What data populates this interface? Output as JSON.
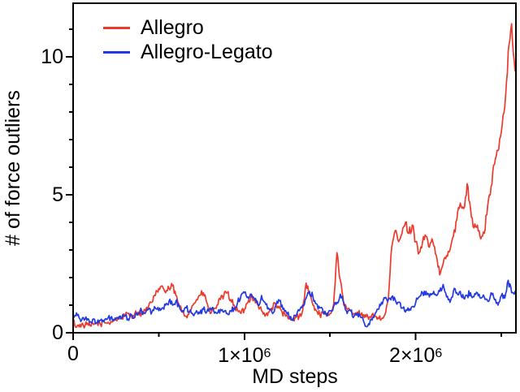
{
  "figure": {
    "background": "#ffffff",
    "frame_color": "#000000",
    "text_color": "#000000"
  },
  "chart_data": {
    "type": "line",
    "title": "",
    "xlabel": "MD steps",
    "ylabel": "# of force outliers",
    "xlim": [
      0,
      2585000
    ],
    "ylim": [
      0,
      11.94
    ],
    "grid": false,
    "legend_position": "top-left-inside",
    "x_major_ticks": [
      0,
      1000000,
      2000000
    ],
    "x_minor_ticks": [
      500000,
      1500000,
      2500000
    ],
    "x_tick_labels": [
      {
        "value": 0,
        "base": "0",
        "exp": ""
      },
      {
        "value": 1000000,
        "base": "1×10",
        "exp": "6"
      },
      {
        "value": 2000000,
        "base": "2×10",
        "exp": "6"
      }
    ],
    "y_major_ticks": [
      0,
      5,
      10
    ],
    "y_minor_ticks": [
      1,
      2,
      3,
      4,
      6,
      7,
      8,
      9,
      11
    ],
    "y_tick_labels": [
      {
        "value": 0,
        "text": "0"
      },
      {
        "value": 5,
        "text": "5"
      },
      {
        "value": 10,
        "text": "10"
      }
    ],
    "appearance": {
      "line_width": 1.7,
      "frame_width": 2,
      "noise_amplitude": 0.1,
      "subdivisions": 4
    },
    "series": [
      {
        "name": "Allegro",
        "color": "#ec3b2d",
        "x_start": 0,
        "x_step": 20000,
        "values": [
          0.45,
          0.2,
          0.3,
          0.25,
          0.3,
          0.25,
          0.3,
          0.35,
          0.3,
          0.4,
          0.35,
          0.4,
          0.45,
          0.5,
          0.55,
          0.6,
          0.7,
          0.6,
          0.7,
          0.75,
          0.7,
          0.8,
          0.95,
          1.1,
          1.35,
          1.6,
          1.7,
          1.45,
          1.6,
          1.7,
          1.35,
          0.95,
          0.75,
          0.6,
          0.8,
          1.0,
          1.2,
          1.35,
          1.45,
          1.1,
          0.7,
          0.85,
          1.0,
          1.2,
          1.35,
          1.45,
          1.2,
          1.0,
          0.8,
          0.7,
          0.85,
          1.1,
          1.35,
          1.2,
          1.0,
          0.8,
          0.6,
          0.75,
          0.9,
          1.05,
          0.9,
          0.75,
          0.6,
          0.5,
          0.45,
          0.55,
          0.6,
          0.8,
          1.8,
          1.4,
          1.0,
          0.8,
          0.65,
          0.7,
          0.6,
          0.7,
          1.0,
          2.9,
          1.9,
          1.0,
          0.85,
          0.8,
          0.7,
          0.75,
          0.65,
          0.55,
          0.6,
          0.55,
          0.65,
          0.55,
          0.5,
          0.65,
          1.2,
          3.1,
          3.7,
          3.3,
          3.6,
          4.0,
          3.6,
          3.9,
          3.3,
          2.9,
          3.3,
          3.5,
          3.1,
          3.3,
          2.8,
          2.1,
          2.5,
          2.8,
          3.0,
          3.5,
          4.1,
          4.7,
          4.5,
          5.4,
          4.5,
          3.8,
          3.9,
          3.4,
          3.6,
          4.6,
          5.3,
          6.1,
          6.6,
          7.3,
          8.2,
          10.2,
          11.2,
          9.5
        ]
      },
      {
        "name": "Allegro-Legato",
        "color": "#233ae2",
        "x_start": 0,
        "x_step": 20000,
        "values": [
          0.6,
          0.72,
          0.5,
          0.55,
          0.45,
          0.4,
          0.5,
          0.35,
          0.45,
          0.4,
          0.5,
          0.55,
          0.45,
          0.55,
          0.5,
          0.6,
          0.5,
          0.65,
          0.55,
          0.7,
          0.8,
          0.7,
          0.85,
          0.75,
          0.9,
          0.8,
          0.9,
          1.0,
          1.15,
          1.0,
          1.15,
          0.95,
          0.8,
          0.9,
          0.75,
          0.65,
          0.8,
          0.7,
          0.85,
          0.75,
          0.9,
          0.8,
          0.7,
          0.85,
          0.75,
          0.7,
          0.8,
          0.9,
          1.1,
          1.35,
          1.45,
          1.3,
          1.4,
          1.2,
          1.0,
          1.35,
          1.1,
          0.9,
          0.75,
          0.95,
          1.2,
          1.0,
          0.8,
          0.6,
          0.45,
          0.6,
          0.8,
          1.0,
          1.25,
          1.5,
          1.3,
          1.05,
          0.9,
          0.75,
          0.7,
          0.8,
          0.95,
          1.1,
          1.4,
          1.1,
          0.7,
          0.8,
          0.6,
          0.7,
          0.55,
          0.35,
          0.25,
          0.5,
          0.65,
          0.85,
          1.1,
          1.25,
          1.2,
          1.3,
          1.2,
          1.1,
          0.9,
          0.75,
          0.8,
          0.95,
          1.1,
          1.3,
          1.45,
          1.5,
          1.3,
          1.4,
          1.35,
          1.5,
          1.75,
          1.3,
          1.1,
          1.5,
          1.45,
          1.5,
          1.25,
          1.35,
          1.45,
          1.3,
          1.45,
          1.25,
          1.3,
          1.15,
          1.45,
          1.2,
          1.0,
          1.35,
          1.25,
          1.9,
          1.45,
          1.5
        ]
      }
    ]
  }
}
